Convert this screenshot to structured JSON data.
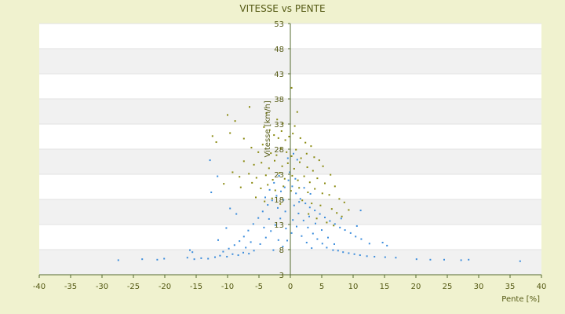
{
  "chart_data": {
    "type": "scatter",
    "title": "VITESSE vs PENTE",
    "xlabel": "Pente [%]",
    "ylabel": "Vitesse [km/h]",
    "xlim": [
      -40,
      40
    ],
    "ylim": [
      3,
      53
    ],
    "x_ticks": [
      -40,
      -35,
      -30,
      -25,
      -20,
      -15,
      -10,
      -5,
      0,
      5,
      10,
      15,
      20,
      25,
      30,
      35,
      40
    ],
    "x_tick_labels": [
      "-40",
      "-35",
      "-30",
      "-25",
      "-20",
      "-15",
      "-10",
      "-5",
      "0",
      "5",
      "10",
      "15",
      "20",
      "25",
      "30",
      "35",
      "40"
    ],
    "y_ticks": [
      3,
      8,
      13,
      18,
      23,
      28,
      33,
      38,
      43,
      48,
      53
    ],
    "y_tick_labels": [
      "3",
      "8",
      "13",
      "18",
      "23",
      "28",
      "33",
      "38",
      "43",
      "48",
      "53"
    ],
    "grid": "horizontal bands",
    "legend": "none",
    "colors": {
      "page_bg": "#f0f2cf",
      "plot_band_light": "#ffffff",
      "plot_band_dark": "#f1f1f1",
      "axis": "#556b2f",
      "text": "#555a14",
      "series_olive": "#8a8a10",
      "series_blue": "#3c8ddc"
    },
    "series": [
      {
        "color": "#8a8a10",
        "points": [
          [
            -10,
            34.8
          ],
          [
            -8.8,
            33.6
          ],
          [
            -6.5,
            36.4
          ],
          [
            -3.8,
            35.2
          ],
          [
            1.1,
            35.4
          ],
          [
            -12.4,
            30.6
          ],
          [
            -11.8,
            29.4
          ],
          [
            -9.6,
            31.2
          ],
          [
            -7.4,
            30.1
          ],
          [
            -4.2,
            32.4
          ],
          [
            -3.3,
            31.8
          ],
          [
            -2.6,
            30.8
          ],
          [
            -1.9,
            30.2
          ],
          [
            -1.4,
            31.6
          ],
          [
            -0.8,
            29.8
          ],
          [
            -0.2,
            30.5
          ],
          [
            0.4,
            31.1
          ],
          [
            1.6,
            30.2
          ],
          [
            2.4,
            29.3
          ],
          [
            3.3,
            28.6
          ],
          [
            -6.2,
            28.3
          ],
          [
            -5.1,
            27.4
          ],
          [
            -4.4,
            28.9
          ],
          [
            -3.1,
            27.2
          ],
          [
            -2.2,
            26.8
          ],
          [
            -1.5,
            28.1
          ],
          [
            -0.6,
            27.4
          ],
          [
            0.2,
            26.6
          ],
          [
            0.9,
            27.9
          ],
          [
            1.7,
            26.2
          ],
          [
            2.6,
            27.1
          ],
          [
            3.8,
            26.4
          ],
          [
            4.6,
            25.8
          ],
          [
            -7.4,
            25.6
          ],
          [
            -5.8,
            24.9
          ],
          [
            -4.6,
            25.3
          ],
          [
            -3.4,
            24.2
          ],
          [
            -2.5,
            25.7
          ],
          [
            -1.3,
            24.6
          ],
          [
            -0.4,
            25.2
          ],
          [
            0.6,
            24.1
          ],
          [
            1.5,
            25.4
          ],
          [
            2.7,
            24.4
          ],
          [
            3.6,
            23.7
          ],
          [
            5.2,
            24.6
          ],
          [
            6.4,
            22.9
          ],
          [
            -9.2,
            23.4
          ],
          [
            -8.1,
            22.5
          ],
          [
            -6.6,
            23.1
          ],
          [
            -5.4,
            22.3
          ],
          [
            -3.9,
            22.8
          ],
          [
            -2.8,
            21.9
          ],
          [
            -1.7,
            23.3
          ],
          [
            -0.9,
            22.1
          ],
          [
            0.3,
            22.7
          ],
          [
            1.2,
            21.8
          ],
          [
            2.2,
            22.6
          ],
          [
            3.1,
            21.4
          ],
          [
            4.3,
            22.2
          ],
          [
            5.5,
            21.2
          ],
          [
            7.1,
            20.6
          ],
          [
            -10.6,
            21.1
          ],
          [
            -7.9,
            20.4
          ],
          [
            -6.1,
            21.3
          ],
          [
            -4.7,
            20.2
          ],
          [
            -3.6,
            20.9
          ],
          [
            -2.4,
            19.8
          ],
          [
            -1.1,
            20.6
          ],
          [
            0.1,
            19.7
          ],
          [
            1.4,
            20.3
          ],
          [
            2.8,
            19.4
          ],
          [
            3.9,
            20.1
          ],
          [
            5.1,
            19.2
          ],
          [
            6.2,
            18.9
          ],
          [
            7.8,
            18.1
          ],
          [
            8.6,
            17.4
          ],
          [
            9.3,
            15.9
          ],
          [
            -5.5,
            18.4
          ],
          [
            -4.1,
            17.6
          ],
          [
            -2.9,
            18.2
          ],
          [
            -1.6,
            17.1
          ],
          [
            1.9,
            17.8
          ],
          [
            3.4,
            17.2
          ],
          [
            4.8,
            16.8
          ],
          [
            6.6,
            16.1
          ],
          [
            7.4,
            15.3
          ],
          [
            8.2,
            14.6
          ],
          [
            2.9,
            15.1
          ],
          [
            4.2,
            14.2
          ],
          [
            5.8,
            13.4
          ],
          [
            6.9,
            12.8
          ],
          [
            0.2,
            40.2
          ],
          [
            -1.2,
            33.1
          ],
          [
            0.7,
            32.6
          ],
          [
            -2.1,
            33.9
          ]
        ]
      },
      {
        "color": "#3c8ddc",
        "points": [
          [
            -27.4,
            5.9
          ],
          [
            -23.6,
            6.1
          ],
          [
            -21.2,
            6.0
          ],
          [
            -20.1,
            6.2
          ],
          [
            -16.4,
            6.4
          ],
          [
            -15.3,
            6.1
          ],
          [
            -14.2,
            6.3
          ],
          [
            -13.1,
            6.2
          ],
          [
            -12.0,
            6.5
          ],
          [
            -11.2,
            6.8
          ],
          [
            -10.1,
            6.6
          ],
          [
            -9.2,
            7.1
          ],
          [
            -8.3,
            6.9
          ],
          [
            -7.5,
            7.4
          ],
          [
            -6.6,
            7.2
          ],
          [
            -5.8,
            7.8
          ],
          [
            -16.0,
            7.9
          ],
          [
            -15.6,
            7.5
          ],
          [
            20.1,
            6.1
          ],
          [
            22.3,
            6.0
          ],
          [
            24.5,
            6.0
          ],
          [
            27.2,
            5.9
          ],
          [
            28.4,
            6.0
          ],
          [
            36.6,
            5.7
          ],
          [
            16.8,
            6.4
          ],
          [
            15.1,
            6.5
          ],
          [
            13.4,
            6.6
          ],
          [
            12.2,
            6.7
          ],
          [
            11.1,
            6.9
          ],
          [
            10.2,
            7.1
          ],
          [
            9.3,
            7.3
          ],
          [
            8.4,
            7.5
          ],
          [
            7.6,
            7.8
          ],
          [
            6.8,
            7.9
          ],
          [
            14.7,
            9.4
          ],
          [
            15.4,
            8.8
          ],
          [
            12.6,
            9.2
          ],
          [
            11.3,
            10.1
          ],
          [
            10.4,
            10.6
          ],
          [
            9.6,
            11.3
          ],
          [
            8.7,
            11.9
          ],
          [
            7.9,
            12.4
          ],
          [
            7.1,
            13.1
          ],
          [
            6.3,
            13.7
          ],
          [
            5.5,
            14.4
          ],
          [
            4.7,
            15.1
          ],
          [
            3.9,
            15.8
          ],
          [
            3.1,
            16.4
          ],
          [
            2.4,
            17.2
          ],
          [
            1.6,
            18.1
          ],
          [
            0.9,
            19.2
          ],
          [
            0.3,
            20.6
          ],
          [
            -0.3,
            21.8
          ],
          [
            -0.9,
            20.4
          ],
          [
            -1.5,
            19.6
          ],
          [
            -2.2,
            18.7
          ],
          [
            -2.9,
            17.8
          ],
          [
            -3.6,
            16.9
          ],
          [
            -4.4,
            15.6
          ],
          [
            -5.1,
            14.3
          ],
          [
            -5.9,
            13.1
          ],
          [
            -6.7,
            11.8
          ],
          [
            -7.4,
            10.6
          ],
          [
            -8.1,
            9.7
          ],
          [
            -8.9,
            8.9
          ],
          [
            -9.8,
            8.2
          ],
          [
            -10.7,
            7.6
          ],
          [
            -4.8,
            9.1
          ],
          [
            -3.9,
            10.4
          ],
          [
            -3.1,
            11.7
          ],
          [
            -2.4,
            12.9
          ],
          [
            -1.6,
            14.2
          ],
          [
            -0.8,
            15.6
          ],
          [
            0.6,
            16.8
          ],
          [
            1.3,
            15.2
          ],
          [
            2.1,
            13.8
          ],
          [
            2.8,
            12.4
          ],
          [
            3.6,
            11.2
          ],
          [
            4.3,
            10.1
          ],
          [
            5.1,
            9.2
          ],
          [
            5.8,
            8.4
          ],
          [
            -1.2,
            8.6
          ],
          [
            -0.5,
            9.8
          ],
          [
            0.2,
            11.3
          ],
          [
            1.0,
            12.6
          ],
          [
            1.8,
            10.7
          ],
          [
            2.6,
            9.4
          ],
          [
            3.4,
            8.3
          ],
          [
            -2.7,
            7.9
          ],
          [
            -1.9,
            9.9
          ],
          [
            -0.7,
            12.2
          ],
          [
            0.4,
            13.9
          ],
          [
            1.4,
            17.5
          ],
          [
            -1.1,
            17.9
          ],
          [
            -2.0,
            16.3
          ],
          [
            -3.4,
            14.1
          ],
          [
            -4.2,
            12.4
          ],
          [
            3.0,
            14.6
          ],
          [
            4.0,
            13.2
          ],
          [
            5.0,
            11.9
          ],
          [
            6.0,
            10.4
          ],
          [
            7.0,
            9.1
          ],
          [
            -0.1,
            23.4
          ],
          [
            0.8,
            22.1
          ],
          [
            -1.8,
            22.7
          ],
          [
            -2.6,
            21.3
          ],
          [
            -3.3,
            19.9
          ],
          [
            -4.0,
            18.4
          ],
          [
            2.2,
            20.3
          ],
          [
            3.2,
            19.1
          ],
          [
            -6.3,
            9.5
          ],
          [
            -7.1,
            8.4
          ],
          [
            -12.6,
            19.4
          ],
          [
            -9.6,
            16.2
          ],
          [
            -8.6,
            15.1
          ],
          [
            -10.2,
            12.3
          ],
          [
            -11.5,
            9.9
          ],
          [
            11.2,
            15.8
          ],
          [
            8.1,
            14.2
          ],
          [
            10.6,
            12.7
          ],
          [
            -12.8,
            25.8
          ],
          [
            -11.6,
            22.6
          ],
          [
            0.5,
            27.1
          ],
          [
            1.1,
            25.9
          ],
          [
            -0.4,
            26.2
          ]
        ]
      }
    ]
  }
}
